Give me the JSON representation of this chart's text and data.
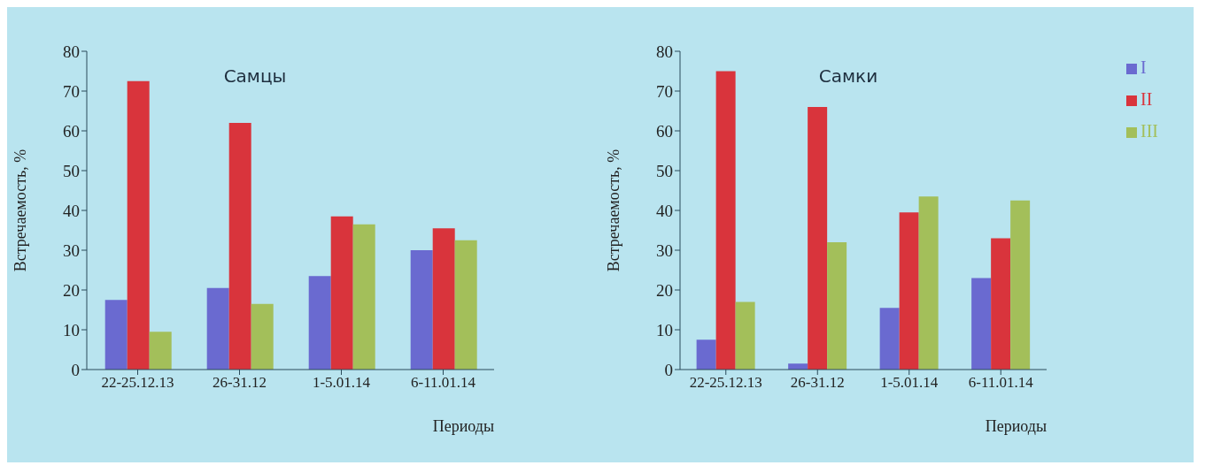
{
  "chart_data": [
    {
      "type": "bar",
      "title": "Самцы",
      "xlabel": "Периоды",
      "ylabel": "Встречаемость, %",
      "categories": [
        "22-25.12.13",
        "26-31.12",
        "1-5.01.14",
        "6-11.01.14"
      ],
      "ylim": [
        0,
        80
      ],
      "yticks": [
        0,
        10,
        20,
        30,
        40,
        50,
        60,
        70,
        80
      ],
      "grid": false,
      "series": [
        {
          "color": "#6a6ad0",
          "values": [
            17.5,
            20.5,
            23.5,
            30
          ]
        },
        {
          "color": "#d9343c",
          "values": [
            72.5,
            62,
            38.5,
            35.5
          ]
        },
        {
          "color": "#a3bf5a",
          "values": [
            9.5,
            16.5,
            36.5,
            32.5
          ]
        }
      ]
    },
    {
      "type": "bar",
      "title": "Самки",
      "xlabel": "Периоды",
      "ylabel": "Встречаемость, %",
      "categories": [
        "22-25.12.13",
        "26-31.12",
        "1-5.01.14",
        "6-11.01.14"
      ],
      "ylim": [
        0,
        80
      ],
      "yticks": [
        0,
        10,
        20,
        30,
        40,
        50,
        60,
        70,
        80
      ],
      "grid": false,
      "legend": "top right",
      "series": [
        {
          "name": "I",
          "color": "#6a6ad0",
          "values": [
            7.5,
            1.5,
            15.5,
            23
          ]
        },
        {
          "name": "II",
          "color": "#d9343c",
          "values": [
            75,
            66,
            39.5,
            33
          ]
        },
        {
          "name": "III",
          "color": "#a3bf5a",
          "values": [
            17,
            32,
            43.5,
            42.5
          ]
        }
      ]
    }
  ]
}
